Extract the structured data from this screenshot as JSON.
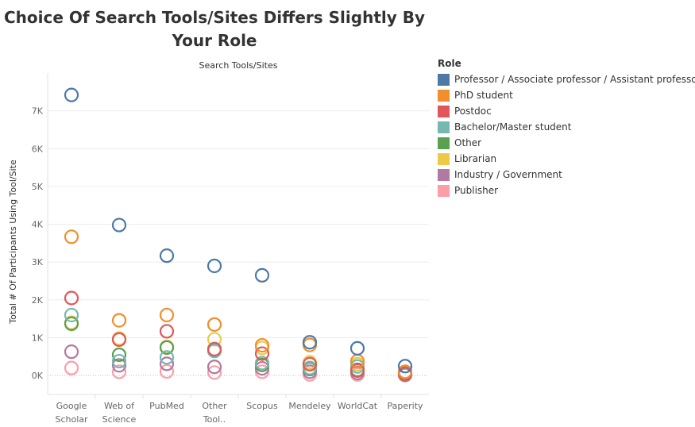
{
  "chart_data": {
    "type": "scatter",
    "title": "Choice Of Search Tools/Sites Differs Slightly By Your Role",
    "header_label": "Search Tools/Sites",
    "xlabel": "",
    "ylabel": "Total # Of Participants Using Tool/Site",
    "ylim": [
      -500,
      8000
    ],
    "yticks": [
      0,
      1000,
      2000,
      3000,
      4000,
      5000,
      6000,
      7000
    ],
    "ytick_labels": [
      "0K",
      "1K",
      "2K",
      "3K",
      "4K",
      "5K",
      "6K",
      "7K"
    ],
    "categories": [
      [
        "Google",
        "Scholar"
      ],
      [
        "Web of",
        "Science"
      ],
      [
        "PubMed"
      ],
      [
        "Other",
        "Tool.."
      ],
      [
        "Scopus"
      ],
      [
        "Mendeley"
      ],
      [
        "WorldCat"
      ],
      [
        "Paperity"
      ]
    ],
    "legend_title": "Role",
    "legend_position": "right",
    "series": [
      {
        "name": "Professor / Associate professor / Assistant professor",
        "color": "#4e79a7",
        "values": [
          7420,
          3980,
          3170,
          2900,
          2650,
          880,
          720,
          250
        ]
      },
      {
        "name": "PhD student",
        "color": "#f28e2b",
        "values": [
          3670,
          1460,
          1600,
          1350,
          800,
          810,
          380,
          100
        ]
      },
      {
        "name": "Postdoc",
        "color": "#e15759",
        "values": [
          2050,
          950,
          1170,
          700,
          580,
          300,
          130,
          50
        ]
      },
      {
        "name": "Bachelor/Master student",
        "color": "#76b7b2",
        "values": [
          1600,
          380,
          480,
          650,
          330,
          200,
          240,
          60
        ]
      },
      {
        "name": "Other",
        "color": "#59a14f",
        "values": [
          1370,
          550,
          740,
          660,
          280,
          170,
          150,
          40
        ]
      },
      {
        "name": "Librarian",
        "color": "#edc948",
        "values": [
          1400,
          980,
          760,
          960,
          730,
          350,
          300,
          70
        ]
      },
      {
        "name": "Industry / Government",
        "color": "#b07aa1",
        "values": [
          630,
          270,
          310,
          230,
          190,
          100,
          70,
          20
        ]
      },
      {
        "name": "Publisher",
        "color": "#ff9da7",
        "values": [
          200,
          100,
          110,
          80,
          100,
          30,
          30,
          10
        ]
      }
    ],
    "grid": true
  }
}
